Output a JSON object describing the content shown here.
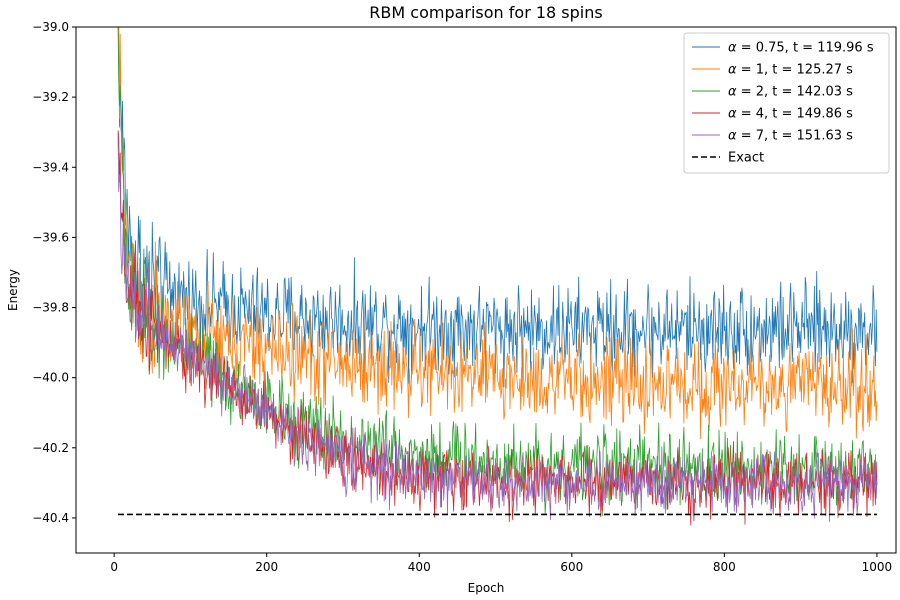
{
  "chart_data": {
    "type": "line",
    "title": "RBM comparison for 18 spins",
    "xlabel": "Epoch",
    "ylabel": "Energy",
    "xlim": [
      -50,
      1025
    ],
    "ylim": [
      -40.5,
      -39.0
    ],
    "xticks": [
      0,
      200,
      400,
      600,
      800,
      1000
    ],
    "xtick_labels": [
      "0",
      "200",
      "400",
      "600",
      "800",
      "1000"
    ],
    "yticks": [
      -40.4,
      -40.2,
      -40.0,
      -39.8,
      -39.6,
      -39.4,
      -39.2,
      -39.0
    ],
    "ytick_labels": [
      "−40.4",
      "−40.2",
      "−40.0",
      "−39.8",
      "−39.6",
      "−39.4",
      "−39.2",
      "−39.0"
    ],
    "grid": false,
    "legend_position": "top-right",
    "series": [
      {
        "name": "α = 0.75, t = 119.96 s",
        "legend_label": {
          "symbol": "α",
          "rest": " = 0.75, t = 119.96 s"
        },
        "color": "#1f77b4",
        "style": "solid",
        "noise": 0.09,
        "x": [
          5,
          10,
          20,
          40,
          60,
          80,
          100,
          150,
          200,
          250,
          300,
          400,
          500,
          600,
          700,
          800,
          900,
          1000
        ],
        "y": [
          -39.0,
          -39.3,
          -39.62,
          -39.72,
          -39.74,
          -39.76,
          -39.78,
          -39.8,
          -39.82,
          -39.83,
          -39.84,
          -39.85,
          -39.86,
          -39.86,
          -39.86,
          -39.86,
          -39.86,
          -39.86
        ]
      },
      {
        "name": "α = 1, t = 125.27 s",
        "legend_label": {
          "symbol": "α",
          "rest": " = 1, t = 125.27 s"
        },
        "color": "#ff7f0e",
        "style": "solid",
        "noise": 0.09,
        "x": [
          5,
          10,
          20,
          40,
          60,
          80,
          100,
          150,
          200,
          250,
          300,
          400,
          500,
          600,
          700,
          800,
          900,
          1000
        ],
        "y": [
          -39.0,
          -39.35,
          -39.72,
          -39.8,
          -39.84,
          -39.86,
          -39.88,
          -39.9,
          -39.92,
          -39.94,
          -39.96,
          -39.98,
          -40.0,
          -40.01,
          -40.02,
          -40.02,
          -40.02,
          -40.02
        ]
      },
      {
        "name": "α = 2, t = 142.03 s",
        "legend_label": {
          "symbol": "α",
          "rest": " = 2, t = 142.03 s"
        },
        "color": "#2ca02c",
        "style": "solid",
        "noise": 0.075,
        "x": [
          5,
          10,
          20,
          40,
          60,
          80,
          100,
          150,
          200,
          250,
          300,
          350,
          400,
          500,
          600,
          700,
          800,
          900,
          1000
        ],
        "y": [
          -39.0,
          -39.4,
          -39.78,
          -39.82,
          -39.86,
          -39.9,
          -39.94,
          -40.02,
          -40.08,
          -40.14,
          -40.18,
          -40.2,
          -40.22,
          -40.24,
          -40.25,
          -40.26,
          -40.26,
          -40.26,
          -40.26
        ]
      },
      {
        "name": "α = 4, t = 149.86 s",
        "legend_label": {
          "symbol": "α",
          "rest": " = 4, t = 149.86 s"
        },
        "color": "#d62728",
        "style": "solid",
        "noise": 0.06,
        "x": [
          5,
          10,
          20,
          40,
          60,
          80,
          100,
          150,
          200,
          250,
          300,
          350,
          400,
          500,
          600,
          700,
          800,
          900,
          1000
        ],
        "y": [
          -39.3,
          -39.6,
          -39.78,
          -39.84,
          -39.88,
          -39.92,
          -39.95,
          -40.03,
          -40.1,
          -40.17,
          -40.23,
          -40.26,
          -40.28,
          -40.3,
          -40.3,
          -40.3,
          -40.3,
          -40.3,
          -40.3
        ]
      },
      {
        "name": "α = 7, t = 151.63 s",
        "legend_label": {
          "symbol": "α",
          "rest": " = 7, t = 151.63 s"
        },
        "color": "#9467bd",
        "style": "solid",
        "noise": 0.06,
        "x": [
          5,
          10,
          20,
          40,
          60,
          80,
          100,
          150,
          200,
          250,
          300,
          350,
          400,
          500,
          600,
          700,
          800,
          900,
          1000
        ],
        "y": [
          -39.3,
          -39.62,
          -39.8,
          -39.85,
          -39.88,
          -39.9,
          -39.93,
          -40.02,
          -40.1,
          -40.17,
          -40.23,
          -40.26,
          -40.28,
          -40.3,
          -40.3,
          -40.3,
          -40.3,
          -40.3,
          -40.3
        ]
      },
      {
        "name": "Exact",
        "legend_label": {
          "symbol": "",
          "rest": "Exact"
        },
        "color": "#000000",
        "style": "dashed",
        "noise": 0,
        "x": [
          5,
          1000
        ],
        "y": [
          -40.39,
          -40.39
        ]
      }
    ]
  }
}
